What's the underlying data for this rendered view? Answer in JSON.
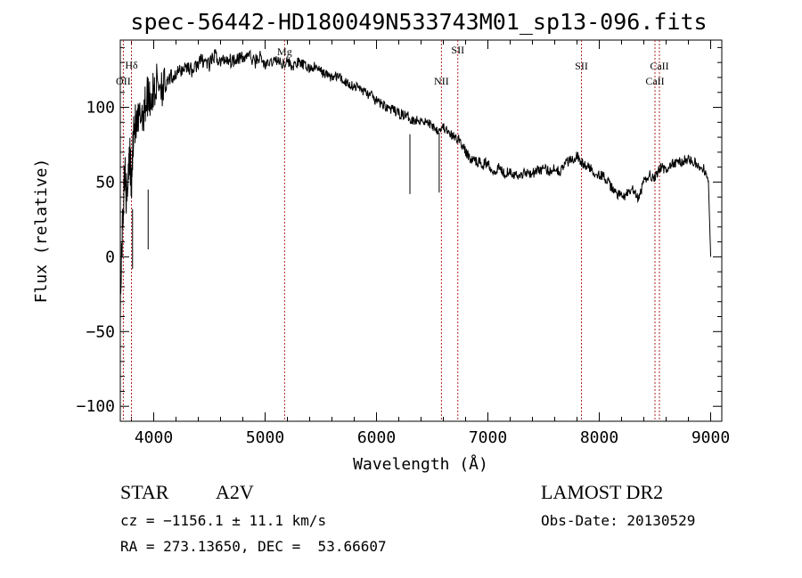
{
  "chart_data": {
    "type": "line",
    "title": "spec-56442-HD180049N533743M01_sp13-096.fits",
    "xlabel": "Wavelength (Å)",
    "ylabel": "Flux (relative)",
    "xlim": [
      3700,
      9100
    ],
    "ylim": [
      -110,
      145
    ],
    "x_ticks": [
      4000,
      5000,
      6000,
      7000,
      8000,
      9000
    ],
    "y_ticks": [
      -100,
      -50,
      0,
      50,
      100
    ],
    "x_tick_labels": [
      "4000",
      "5000",
      "6000",
      "7000",
      "8000",
      "9000"
    ],
    "y_tick_labels": [
      "-100",
      "-50",
      "0",
      "50",
      "100"
    ],
    "series": [
      {
        "x": [
          3700,
          3720,
          3740,
          3760,
          3780,
          3800,
          3820,
          3850,
          3880,
          3920,
          3950,
          3980,
          4020,
          4060,
          4100,
          4150,
          4200,
          4250,
          4300,
          4350,
          4400,
          4450,
          4500,
          4550,
          4600,
          4650,
          4700,
          4750,
          4800,
          4850,
          4900,
          4950,
          5000,
          5050,
          5100,
          5150,
          5200,
          5250,
          5300,
          5350,
          5400,
          5450,
          5500,
          5550,
          5600,
          5650,
          5700,
          5750,
          5800,
          5850,
          5900,
          5950,
          6000,
          6050,
          6100,
          6150,
          6200,
          6250,
          6300,
          6350,
          6400,
          6450,
          6500,
          6550,
          6600,
          6650,
          6700,
          6750,
          6800,
          6850,
          6900,
          6950,
          7000,
          7050,
          7100,
          7150,
          7200,
          7250,
          7300,
          7350,
          7400,
          7450,
          7500,
          7550,
          7600,
          7650,
          7700,
          7750,
          7800,
          7850,
          7900,
          7950,
          8000,
          8050,
          8100,
          8150,
          8200,
          8250,
          8300,
          8350,
          8400,
          8450,
          8500,
          8550,
          8600,
          8650,
          8700,
          8750,
          8800,
          8850,
          8900,
          8950,
          8980,
          9000
        ],
        "y": [
          -30,
          20,
          60,
          35,
          75,
          45,
          90,
          85,
          95,
          100,
          110,
          105,
          115,
          118,
          112,
          120,
          122,
          125,
          128,
          124,
          130,
          132,
          128,
          135,
          130,
          133,
          131,
          134,
          132,
          136,
          130,
          134,
          128,
          130,
          132,
          129,
          131,
          127,
          130,
          128,
          126,
          127,
          124,
          122,
          120,
          121,
          118,
          116,
          114,
          113,
          110,
          108,
          104,
          102,
          100,
          98,
          96,
          95,
          93,
          91,
          92,
          90,
          88,
          85,
          87,
          82,
          80,
          78,
          70,
          65,
          64,
          62,
          63,
          57,
          60,
          56,
          58,
          54,
          55,
          57,
          56,
          58,
          59,
          57,
          60,
          57,
          63,
          65,
          68,
          62,
          60,
          57,
          55,
          53,
          47,
          43,
          40,
          42,
          45,
          38,
          50,
          55,
          53,
          60,
          58,
          62,
          63,
          64,
          66,
          63,
          60,
          58,
          50,
          0
        ],
        "dips": [
          {
            "x": 3950,
            "y": 5
          },
          {
            "x": 6300,
            "y": 42
          },
          {
            "x": 6563,
            "y": 43
          },
          {
            "x": 3810,
            "y": -8
          }
        ]
      }
    ],
    "lines": [
      {
        "label": "Hδ",
        "x": 3800
      },
      {
        "label": "OII",
        "x": 3727
      },
      {
        "label": "Mg",
        "x": 5175
      },
      {
        "label": "NII",
        "x": 6583
      },
      {
        "label": "SII",
        "x": 6730
      },
      {
        "label": "SII",
        "x": 7840
      },
      {
        "label": "CaII",
        "x": 8540
      },
      {
        "label": "CaII",
        "x": 8500
      }
    ]
  },
  "info": {
    "class_label": "STAR",
    "subclass": "A2V",
    "cz": "cz = −1156.1 ± 11.1 km/s",
    "coords": "RA = 273.13650, DEC =  53.66607",
    "survey": "LAMOST DR2",
    "obs_date": "Obs-Date: 20130529"
  },
  "colors": {
    "spectrum": "#000000",
    "line_marker": "#b22222",
    "axes": "#000000"
  }
}
